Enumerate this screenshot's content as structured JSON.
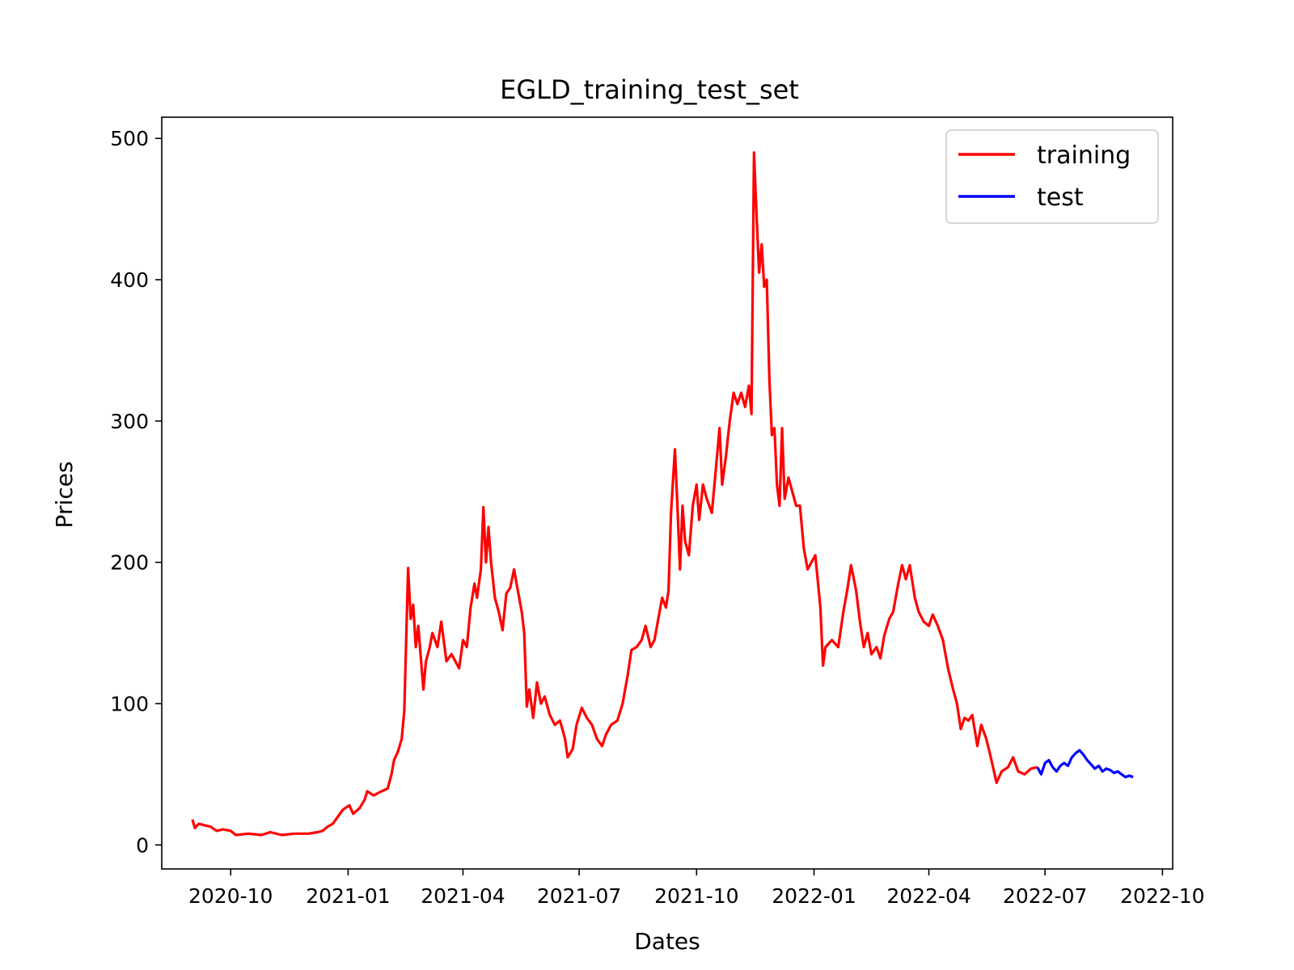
{
  "chart_data": {
    "type": "line",
    "title": "EGLD_training_test_set",
    "xlabel": "Dates",
    "ylabel": "Prices",
    "xlim": [
      "2020-08-08",
      "2022-10-09"
    ],
    "ylim": [
      -17,
      515
    ],
    "xticks": [
      "2020-10",
      "2021-01",
      "2021-04",
      "2021-07",
      "2021-10",
      "2022-01",
      "2022-04",
      "2022-07",
      "2022-10"
    ],
    "yticks": [
      0,
      100,
      200,
      300,
      400,
      500
    ],
    "grid": false,
    "legend": {
      "position": "top-right",
      "entries": [
        {
          "label": "training",
          "color": "#ff0000"
        },
        {
          "label": "test",
          "color": "#0000ff"
        }
      ]
    },
    "series": [
      {
        "name": "training",
        "color": "#ff0000",
        "points": [
          [
            "2020-09-01",
            18
          ],
          [
            "2020-09-03",
            12
          ],
          [
            "2020-09-06",
            15
          ],
          [
            "2020-09-10",
            14
          ],
          [
            "2020-09-15",
            13
          ],
          [
            "2020-09-20",
            10
          ],
          [
            "2020-09-25",
            11
          ],
          [
            "2020-10-01",
            10
          ],
          [
            "2020-10-05",
            7
          ],
          [
            "2020-10-15",
            8
          ],
          [
            "2020-10-25",
            7
          ],
          [
            "2020-11-01",
            9
          ],
          [
            "2020-11-10",
            7
          ],
          [
            "2020-11-20",
            8
          ],
          [
            "2020-12-01",
            8
          ],
          [
            "2020-12-08",
            9
          ],
          [
            "2020-12-12",
            10
          ],
          [
            "2020-12-16",
            13
          ],
          [
            "2020-12-20",
            15
          ],
          [
            "2020-12-24",
            20
          ],
          [
            "2020-12-28",
            25
          ],
          [
            "2021-01-02",
            28
          ],
          [
            "2021-01-05",
            22
          ],
          [
            "2021-01-10",
            26
          ],
          [
            "2021-01-14",
            32
          ],
          [
            "2021-01-16",
            38
          ],
          [
            "2021-01-21",
            35
          ],
          [
            "2021-01-25",
            37
          ],
          [
            "2021-02-01",
            40
          ],
          [
            "2021-02-04",
            50
          ],
          [
            "2021-02-06",
            60
          ],
          [
            "2021-02-09",
            66
          ],
          [
            "2021-02-12",
            75
          ],
          [
            "2021-02-14",
            95
          ],
          [
            "2021-02-17",
            196
          ],
          [
            "2021-02-19",
            160
          ],
          [
            "2021-02-21",
            170
          ],
          [
            "2021-02-23",
            140
          ],
          [
            "2021-02-25",
            155
          ],
          [
            "2021-03-01",
            110
          ],
          [
            "2021-03-03",
            130
          ],
          [
            "2021-03-06",
            140
          ],
          [
            "2021-03-08",
            150
          ],
          [
            "2021-03-12",
            140
          ],
          [
            "2021-03-15",
            158
          ],
          [
            "2021-03-19",
            130
          ],
          [
            "2021-03-23",
            135
          ],
          [
            "2021-03-26",
            130
          ],
          [
            "2021-03-29",
            125
          ],
          [
            "2021-04-01",
            145
          ],
          [
            "2021-04-04",
            140
          ],
          [
            "2021-04-07",
            168
          ],
          [
            "2021-04-10",
            185
          ],
          [
            "2021-04-12",
            175
          ],
          [
            "2021-04-15",
            195
          ],
          [
            "2021-04-17",
            239
          ],
          [
            "2021-04-19",
            200
          ],
          [
            "2021-04-21",
            225
          ],
          [
            "2021-04-23",
            200
          ],
          [
            "2021-04-26",
            175
          ],
          [
            "2021-04-29",
            165
          ],
          [
            "2021-05-02",
            152
          ],
          [
            "2021-05-05",
            178
          ],
          [
            "2021-05-08",
            182
          ],
          [
            "2021-05-11",
            195
          ],
          [
            "2021-05-14",
            180
          ],
          [
            "2021-05-17",
            165
          ],
          [
            "2021-05-19",
            150
          ],
          [
            "2021-05-21",
            98
          ],
          [
            "2021-05-23",
            110
          ],
          [
            "2021-05-26",
            90
          ],
          [
            "2021-05-29",
            115
          ],
          [
            "2021-06-01",
            100
          ],
          [
            "2021-06-04",
            105
          ],
          [
            "2021-06-08",
            92
          ],
          [
            "2021-06-12",
            85
          ],
          [
            "2021-06-16",
            88
          ],
          [
            "2021-06-20",
            75
          ],
          [
            "2021-06-22",
            62
          ],
          [
            "2021-06-26",
            68
          ],
          [
            "2021-06-29",
            85
          ],
          [
            "2021-07-03",
            97
          ],
          [
            "2021-07-07",
            90
          ],
          [
            "2021-07-11",
            85
          ],
          [
            "2021-07-15",
            75
          ],
          [
            "2021-07-19",
            70
          ],
          [
            "2021-07-22",
            78
          ],
          [
            "2021-07-26",
            85
          ],
          [
            "2021-07-31",
            88
          ],
          [
            "2021-08-04",
            100
          ],
          [
            "2021-08-08",
            120
          ],
          [
            "2021-08-11",
            138
          ],
          [
            "2021-08-15",
            140
          ],
          [
            "2021-08-19",
            145
          ],
          [
            "2021-08-22",
            155
          ],
          [
            "2021-08-26",
            140
          ],
          [
            "2021-08-29",
            145
          ],
          [
            "2021-09-01",
            160
          ],
          [
            "2021-09-04",
            175
          ],
          [
            "2021-09-07",
            168
          ],
          [
            "2021-09-09",
            180
          ],
          [
            "2021-09-11",
            235
          ],
          [
            "2021-09-13",
            265
          ],
          [
            "2021-09-14",
            280
          ],
          [
            "2021-09-16",
            240
          ],
          [
            "2021-09-18",
            195
          ],
          [
            "2021-09-20",
            240
          ],
          [
            "2021-09-22",
            215
          ],
          [
            "2021-09-25",
            205
          ],
          [
            "2021-09-28",
            240
          ],
          [
            "2021-10-01",
            255
          ],
          [
            "2021-10-03",
            230
          ],
          [
            "2021-10-06",
            255
          ],
          [
            "2021-10-09",
            245
          ],
          [
            "2021-10-13",
            235
          ],
          [
            "2021-10-16",
            265
          ],
          [
            "2021-10-19",
            295
          ],
          [
            "2021-10-21",
            255
          ],
          [
            "2021-10-24",
            275
          ],
          [
            "2021-10-27",
            300
          ],
          [
            "2021-10-30",
            320
          ],
          [
            "2021-11-02",
            312
          ],
          [
            "2021-11-05",
            320
          ],
          [
            "2021-11-08",
            310
          ],
          [
            "2021-11-11",
            325
          ],
          [
            "2021-11-13",
            305
          ],
          [
            "2021-11-15",
            490
          ],
          [
            "2021-11-17",
            445
          ],
          [
            "2021-11-19",
            405
          ],
          [
            "2021-11-21",
            425
          ],
          [
            "2021-11-23",
            395
          ],
          [
            "2021-11-25",
            400
          ],
          [
            "2021-11-27",
            330
          ],
          [
            "2021-11-29",
            290
          ],
          [
            "2021-12-01",
            295
          ],
          [
            "2021-12-03",
            255
          ],
          [
            "2021-12-05",
            240
          ],
          [
            "2021-12-07",
            295
          ],
          [
            "2021-12-09",
            245
          ],
          [
            "2021-12-12",
            260
          ],
          [
            "2021-12-15",
            250
          ],
          [
            "2021-12-18",
            240
          ],
          [
            "2021-12-21",
            240
          ],
          [
            "2021-12-24",
            210
          ],
          [
            "2021-12-27",
            195
          ],
          [
            "2021-12-30",
            200
          ],
          [
            "2022-01-02",
            205
          ],
          [
            "2022-01-06",
            168
          ],
          [
            "2022-01-08",
            127
          ],
          [
            "2022-01-10",
            140
          ],
          [
            "2022-01-15",
            145
          ],
          [
            "2022-01-20",
            140
          ],
          [
            "2022-01-24",
            165
          ],
          [
            "2022-01-27",
            180
          ],
          [
            "2022-01-30",
            198
          ],
          [
            "2022-02-03",
            180
          ],
          [
            "2022-02-06",
            158
          ],
          [
            "2022-02-09",
            140
          ],
          [
            "2022-02-12",
            150
          ],
          [
            "2022-02-15",
            135
          ],
          [
            "2022-02-19",
            140
          ],
          [
            "2022-02-22",
            132
          ],
          [
            "2022-02-25",
            148
          ],
          [
            "2022-03-01",
            160
          ],
          [
            "2022-03-04",
            165
          ],
          [
            "2022-03-08",
            185
          ],
          [
            "2022-03-11",
            198
          ],
          [
            "2022-03-14",
            188
          ],
          [
            "2022-03-17",
            198
          ],
          [
            "2022-03-21",
            175
          ],
          [
            "2022-03-24",
            165
          ],
          [
            "2022-03-28",
            158
          ],
          [
            "2022-04-01",
            155
          ],
          [
            "2022-04-04",
            163
          ],
          [
            "2022-04-08",
            155
          ],
          [
            "2022-04-12",
            145
          ],
          [
            "2022-04-16",
            125
          ],
          [
            "2022-04-20",
            110
          ],
          [
            "2022-04-23",
            100
          ],
          [
            "2022-04-26",
            82
          ],
          [
            "2022-04-29",
            90
          ],
          [
            "2022-05-02",
            88
          ],
          [
            "2022-05-05",
            92
          ],
          [
            "2022-05-09",
            70
          ],
          [
            "2022-05-12",
            85
          ],
          [
            "2022-05-16",
            75
          ],
          [
            "2022-05-20",
            60
          ],
          [
            "2022-05-24",
            44
          ],
          [
            "2022-05-28",
            52
          ],
          [
            "2022-06-02",
            55
          ],
          [
            "2022-06-06",
            62
          ],
          [
            "2022-06-10",
            52
          ],
          [
            "2022-06-15",
            50
          ],
          [
            "2022-06-20",
            54
          ],
          [
            "2022-06-25",
            55
          ]
        ]
      },
      {
        "name": "test",
        "color": "#0000ff",
        "points": [
          [
            "2022-06-25",
            55
          ],
          [
            "2022-06-28",
            50
          ],
          [
            "2022-07-01",
            58
          ],
          [
            "2022-07-04",
            60
          ],
          [
            "2022-07-07",
            55
          ],
          [
            "2022-07-10",
            52
          ],
          [
            "2022-07-13",
            56
          ],
          [
            "2022-07-16",
            58
          ],
          [
            "2022-07-19",
            56
          ],
          [
            "2022-07-22",
            62
          ],
          [
            "2022-07-25",
            65
          ],
          [
            "2022-07-28",
            67
          ],
          [
            "2022-07-31",
            64
          ],
          [
            "2022-08-03",
            60
          ],
          [
            "2022-08-06",
            57
          ],
          [
            "2022-08-09",
            54
          ],
          [
            "2022-08-12",
            56
          ],
          [
            "2022-08-15",
            52
          ],
          [
            "2022-08-18",
            54
          ],
          [
            "2022-08-21",
            53
          ],
          [
            "2022-08-24",
            51
          ],
          [
            "2022-08-27",
            52
          ],
          [
            "2022-08-30",
            50
          ],
          [
            "2022-09-02",
            48
          ],
          [
            "2022-09-05",
            49
          ],
          [
            "2022-09-08",
            48
          ]
        ]
      }
    ]
  }
}
